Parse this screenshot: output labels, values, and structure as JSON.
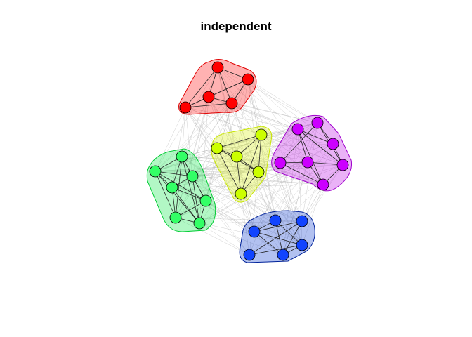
{
  "title": "independent",
  "chart_data": {
    "type": "network",
    "communities": [
      {
        "id": "red",
        "fill": "#ff0000",
        "node_color": "#ff0000",
        "hull_stroke": "#e00000"
      },
      {
        "id": "yellow",
        "fill": "#d4f000",
        "node_color": "#ccff00",
        "hull_stroke": "#c8e600"
      },
      {
        "id": "purple",
        "fill": "#b800e6",
        "node_color": "#cc00ff",
        "hull_stroke": "#a000cc"
      },
      {
        "id": "green",
        "fill": "#00e640",
        "node_color": "#33ff66",
        "hull_stroke": "#00cc33"
      },
      {
        "id": "blue",
        "fill": "#0033cc",
        "node_color": "#1144ff",
        "hull_stroke": "#002299"
      }
    ],
    "node_counts": {
      "red": 5,
      "yellow": 5,
      "purple": 7,
      "green": 7,
      "blue": 7
    },
    "edge_style": {
      "intra": "#222222",
      "inter": "#bbbbbb"
    }
  }
}
